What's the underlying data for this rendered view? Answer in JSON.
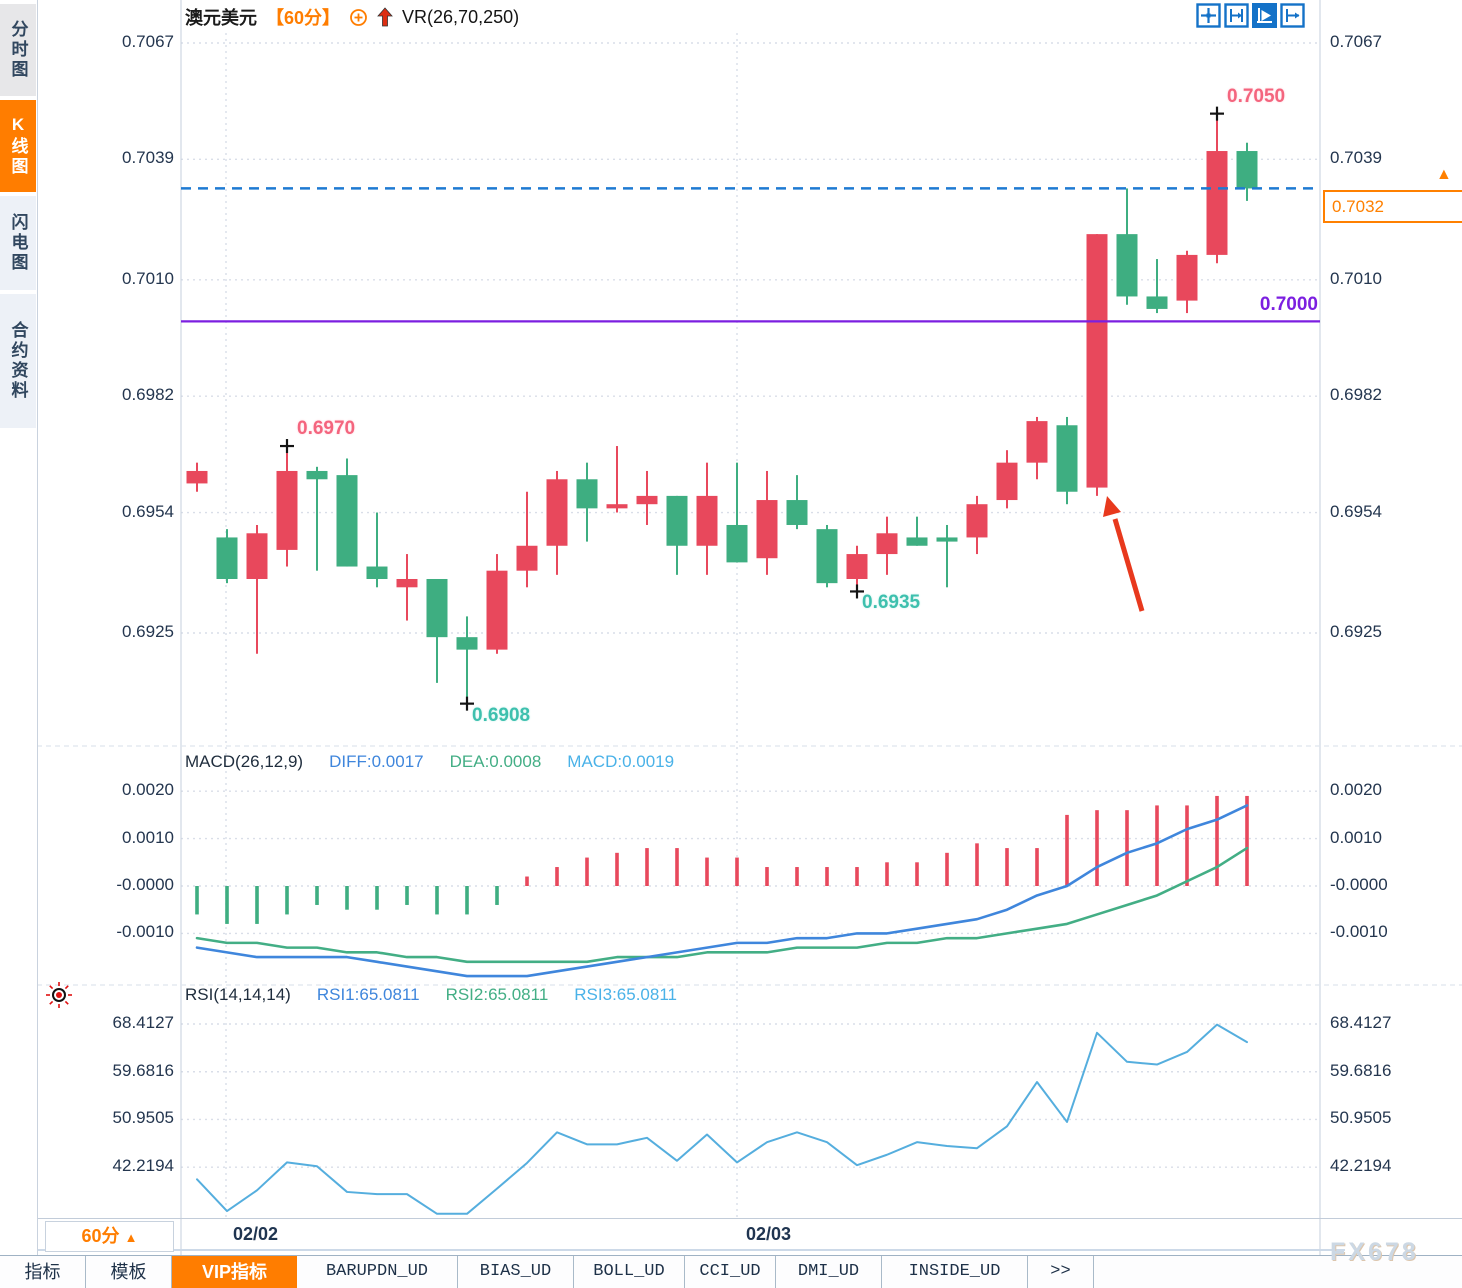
{
  "header": {
    "symbol": "澳元美元",
    "period": "【60分】",
    "vr_label": "VR(26,70,250)"
  },
  "sidebar": {
    "tabs": [
      {
        "label": "分时图",
        "active": false
      },
      {
        "label": "K线图",
        "active": true
      },
      {
        "label": "闪电图",
        "active": false
      },
      {
        "label": "合约资料",
        "active": false
      }
    ]
  },
  "main_chart": {
    "axis_labels": [
      "0.7067",
      "0.7039",
      "0.7010",
      "0.6982",
      "0.6954",
      "0.6925"
    ],
    "support_line": {
      "label": "0.7000",
      "value": 0.7
    },
    "current_price": {
      "label": "0.7032",
      "value": 0.7032,
      "marker": "▲"
    },
    "annotations": [
      {
        "label": "0.6970",
        "candle": 3,
        "side": "high",
        "color_key": "red"
      },
      {
        "label": "0.7050",
        "candle": 34,
        "side": "high",
        "color_key": "red"
      },
      {
        "label": "0.6908",
        "candle": 9,
        "side": "low",
        "color_key": "teal"
      },
      {
        "label": "0.6935",
        "candle": 22,
        "side": "low",
        "color_key": "teal"
      }
    ]
  },
  "macd_panel": {
    "title": "MACD(26,12,9)",
    "diff_label": "DIFF:0.0017",
    "dea_label": "DEA:0.0008",
    "macd_label": "MACD:0.0019",
    "axis_labels": [
      "0.0020",
      "0.0010",
      "-0.0000",
      "-0.0010"
    ],
    "axis_values": [
      0.002,
      0.001,
      0.0,
      -0.001
    ]
  },
  "rsi_panel": {
    "title": "RSI(14,14,14)",
    "rsi1_label": "RSI1:65.0811",
    "rsi2_label": "RSI2:65.0811",
    "rsi3_label": "RSI3:65.0811",
    "axis_labels": [
      "68.4127",
      "59.6816",
      "50.9505",
      "42.2194"
    ],
    "axis_values": [
      68.4127,
      59.6816,
      50.9505,
      42.2194
    ]
  },
  "bottom": {
    "timeframe": "60分",
    "timeframe_arrow": "▲",
    "date_labels": [
      {
        "text": "02/02"
      },
      {
        "text": "02/03"
      }
    ],
    "tabs": [
      {
        "label": "指标",
        "active": false,
        "mono": false
      },
      {
        "label": "模板",
        "active": false,
        "mono": false
      },
      {
        "label": "VIP指标",
        "active": true,
        "mono": false
      },
      {
        "label": "BARUPDN_UD",
        "active": false,
        "mono": true
      },
      {
        "label": "BIAS_UD",
        "active": false,
        "mono": true
      },
      {
        "label": "BOLL_UD",
        "active": false,
        "mono": true
      },
      {
        "label": "CCI_UD",
        "active": false,
        "mono": true
      },
      {
        "label": "DMI_UD",
        "active": false,
        "mono": true
      },
      {
        "label": "INSIDE_UD",
        "active": false,
        "mono": true
      },
      {
        "label": ">>",
        "active": false,
        "mono": true
      }
    ]
  },
  "watermark": "FX678",
  "colors": {
    "up": "#e8485c",
    "down": "#3eae81",
    "accent_orange": "#ff7d00",
    "blue_line": "#3f86dc",
    "green_line": "#43ae85",
    "cyan_line": "#4ab2e8",
    "rsi_line": "#55aede",
    "purple": "#7c1fe0",
    "dashed_blue": "#1e7ad2",
    "arrow_red": "#e8391d",
    "grid": "#d9dee8",
    "border": "#c5cfdc",
    "icon_blue": "#1472c8",
    "marker_black": "#141414"
  },
  "chart_data": {
    "type": "candlestick",
    "title": "澳元美元 60分 K线图",
    "x_dates": [
      "02/02",
      "02/03"
    ],
    "price_axis_range": [
      0.6908,
      0.7067
    ],
    "candles_ohlc": [
      [
        0.6961,
        0.6966,
        0.6959,
        0.6964
      ],
      [
        0.6948,
        0.695,
        0.6937,
        0.6938
      ],
      [
        0.6938,
        0.6951,
        0.692,
        0.6949
      ],
      [
        0.6945,
        0.697,
        0.6941,
        0.6964
      ],
      [
        0.6964,
        0.6965,
        0.694,
        0.6962
      ],
      [
        0.6963,
        0.6967,
        0.6941,
        0.6941
      ],
      [
        0.6941,
        0.6954,
        0.6936,
        0.6938
      ],
      [
        0.6936,
        0.6944,
        0.6928,
        0.6938
      ],
      [
        0.6938,
        0.6938,
        0.6913,
        0.6924
      ],
      [
        0.6924,
        0.6929,
        0.6908,
        0.6921
      ],
      [
        0.6921,
        0.6944,
        0.692,
        0.694
      ],
      [
        0.694,
        0.6959,
        0.6936,
        0.6946
      ],
      [
        0.6946,
        0.6964,
        0.6939,
        0.6962
      ],
      [
        0.6962,
        0.6966,
        0.6947,
        0.6955
      ],
      [
        0.6955,
        0.697,
        0.6954,
        0.6956
      ],
      [
        0.6956,
        0.6964,
        0.6951,
        0.6958
      ],
      [
        0.6958,
        0.6958,
        0.6939,
        0.6946
      ],
      [
        0.6946,
        0.6966,
        0.6939,
        0.6958
      ],
      [
        0.6951,
        0.6966,
        0.6942,
        0.6942
      ],
      [
        0.6943,
        0.6964,
        0.6939,
        0.6957
      ],
      [
        0.6957,
        0.6963,
        0.695,
        0.6951
      ],
      [
        0.695,
        0.6951,
        0.6936,
        0.6937
      ],
      [
        0.6938,
        0.6946,
        0.6935,
        0.6944
      ],
      [
        0.6944,
        0.6953,
        0.6939,
        0.6949
      ],
      [
        0.6948,
        0.6953,
        0.6946,
        0.6946
      ],
      [
        0.6948,
        0.6951,
        0.6936,
        0.6947
      ],
      [
        0.6948,
        0.6958,
        0.6944,
        0.6956
      ],
      [
        0.6957,
        0.6969,
        0.6955,
        0.6966
      ],
      [
        0.6966,
        0.6977,
        0.6962,
        0.6976
      ],
      [
        0.6975,
        0.6977,
        0.6956,
        0.6959
      ],
      [
        0.696,
        0.7021,
        0.6958,
        0.7021
      ],
      [
        0.7021,
        0.7032,
        0.7004,
        0.7006
      ],
      [
        0.7006,
        0.7015,
        0.7002,
        0.7003
      ],
      [
        0.7005,
        0.7017,
        0.7002,
        0.7016
      ],
      [
        0.7016,
        0.705,
        0.7014,
        0.7041
      ],
      [
        0.7041,
        0.7043,
        0.7029,
        0.7032
      ]
    ],
    "macd": {
      "hist": [
        -0.0006,
        -0.0008,
        -0.0008,
        -0.0006,
        -0.0004,
        -0.0005,
        -0.0005,
        -0.0004,
        -0.0006,
        -0.0006,
        -0.0004,
        0.0002,
        0.0004,
        0.0006,
        0.0007,
        0.0008,
        0.0008,
        0.0006,
        0.0006,
        0.0004,
        0.0004,
        0.0004,
        0.0004,
        0.0005,
        0.0005,
        0.0007,
        0.0009,
        0.0008,
        0.0008,
        0.0015,
        0.0016,
        0.0016,
        0.0017,
        0.0017,
        0.0019,
        0.0019
      ],
      "diff": [
        -0.0013,
        -0.0014,
        -0.0015,
        -0.0015,
        -0.0015,
        -0.0015,
        -0.0016,
        -0.0017,
        -0.0018,
        -0.0019,
        -0.0019,
        -0.0019,
        -0.0018,
        -0.0017,
        -0.0016,
        -0.0015,
        -0.0014,
        -0.0013,
        -0.0012,
        -0.0012,
        -0.0011,
        -0.0011,
        -0.001,
        -0.001,
        -0.0009,
        -0.0008,
        -0.0007,
        -0.0005,
        -0.0002,
        0.0,
        0.0004,
        0.0007,
        0.0009,
        0.0012,
        0.0014,
        0.0017
      ],
      "dea": [
        -0.0011,
        -0.0012,
        -0.0012,
        -0.0013,
        -0.0013,
        -0.0014,
        -0.0014,
        -0.0015,
        -0.0015,
        -0.0016,
        -0.0016,
        -0.0016,
        -0.0016,
        -0.0016,
        -0.0015,
        -0.0015,
        -0.0015,
        -0.0014,
        -0.0014,
        -0.0014,
        -0.0013,
        -0.0013,
        -0.0013,
        -0.0012,
        -0.0012,
        -0.0011,
        -0.0011,
        -0.001,
        -0.0009,
        -0.0008,
        -0.0006,
        -0.0004,
        -0.0002,
        0.0001,
        0.0004,
        0.0008
      ]
    },
    "rsi": [
      40.0,
      34.2,
      38.0,
      43.1,
      42.4,
      37.7,
      37.3,
      37.3,
      33.7,
      33.7,
      38.3,
      43.0,
      48.6,
      46.4,
      46.4,
      47.6,
      43.4,
      48.2,
      43.1,
      46.8,
      48.6,
      46.8,
      42.6,
      44.5,
      46.8,
      46.1,
      45.7,
      49.7,
      57.8,
      50.5,
      66.8,
      61.5,
      61.0,
      63.3,
      68.3,
      65.1
    ]
  }
}
